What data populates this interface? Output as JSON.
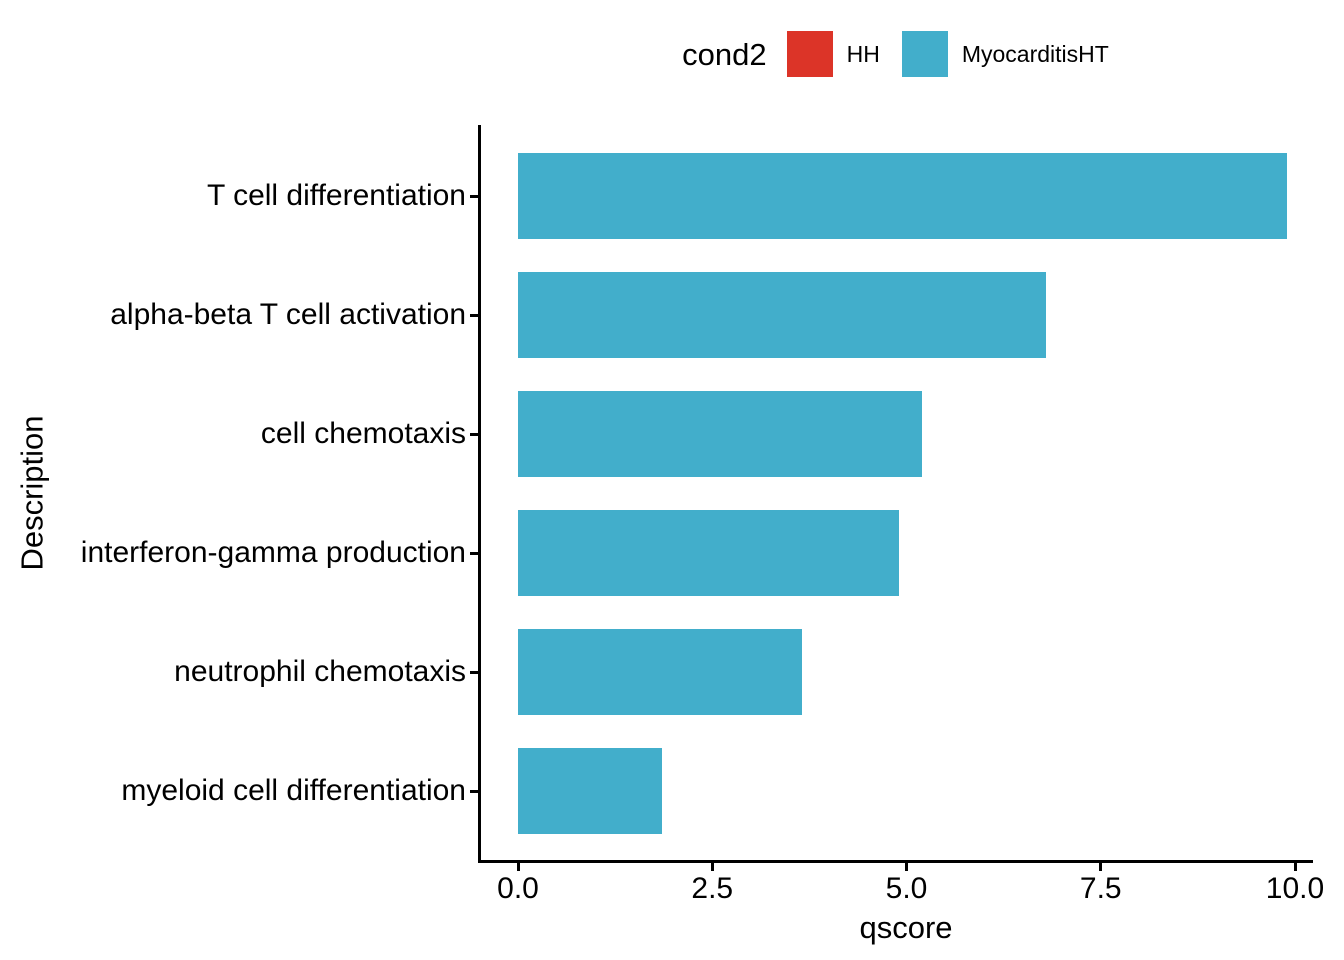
{
  "figure": {
    "background": "#FFFFFF"
  },
  "legend": {
    "title": "cond2",
    "position": "top",
    "items": [
      {
        "label": "HH",
        "color": "#DC3428"
      },
      {
        "label": "MyocarditisHT",
        "color": "#42AECB"
      }
    ]
  },
  "chart_data": {
    "type": "bar",
    "orientation": "horizontal",
    "title": "",
    "xlabel": "qscore",
    "ylabel": "Description",
    "categories": [
      "T cell differentiation",
      "alpha-beta T cell activation",
      "cell chemotaxis",
      "interferon-gamma production",
      "neutrophil chemotaxis",
      "myeloid cell differentiation"
    ],
    "series": [
      {
        "name": "MyocarditisHT",
        "color": "#42AECB",
        "values": [
          9.9,
          6.8,
          5.2,
          4.9,
          3.65,
          1.85
        ]
      }
    ],
    "xlim": [
      0,
      10
    ],
    "xticks": [
      0,
      2.5,
      5,
      7.5,
      10
    ],
    "xtick_labels": [
      "0.0",
      "2.5",
      "5.0",
      "7.5",
      "10.0"
    ],
    "grid": false,
    "legend_position": "top",
    "axis_color": "#000000",
    "text_color": "#000000"
  }
}
